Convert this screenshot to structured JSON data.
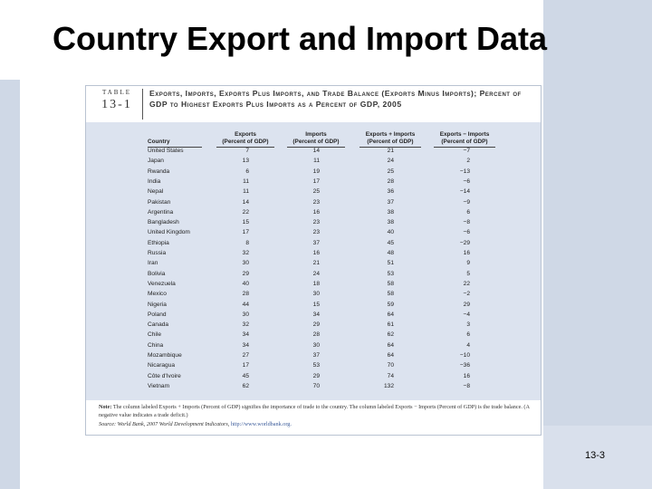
{
  "slide": {
    "title": "Country Export and Import Data",
    "page_number": "13-3"
  },
  "table": {
    "tag_word": "TABLE",
    "tag_number": "13-1",
    "caption": "Exports, Imports, Exports Plus Imports, and Trade Balance (Exports Minus Imports); Percent of GDP to Highest Exports Plus Imports as a Percent of GDP, 2005",
    "headers": {
      "country": "Country",
      "exports": "Exports\n(Percent of GDP)",
      "imports": "Imports\n(Percent of GDP)",
      "sum": "Exports + Imports\n(Percent of GDP)",
      "balance": "Exports − Imports\n(Percent of GDP)"
    },
    "rows": [
      [
        "United States",
        "7",
        "14",
        "21",
        "−7"
      ],
      [
        "Japan",
        "13",
        "11",
        "24",
        "2"
      ],
      [
        "Rwanda",
        "6",
        "19",
        "25",
        "−13"
      ],
      [
        "India",
        "11",
        "17",
        "28",
        "−6"
      ],
      [
        "Nepal",
        "11",
        "25",
        "36",
        "−14"
      ],
      [
        "Pakistan",
        "14",
        "23",
        "37",
        "−9"
      ],
      [
        "Argentina",
        "22",
        "16",
        "38",
        "6"
      ],
      [
        "Bangladesh",
        "15",
        "23",
        "38",
        "−8"
      ],
      [
        "United Kingdom",
        "17",
        "23",
        "40",
        "−6"
      ],
      [
        "Ethiopia",
        "8",
        "37",
        "45",
        "−29"
      ],
      [
        "Russia",
        "32",
        "16",
        "48",
        "16"
      ],
      [
        "Iran",
        "30",
        "21",
        "51",
        "9"
      ],
      [
        "Bolivia",
        "29",
        "24",
        "53",
        "5"
      ],
      [
        "Venezuela",
        "40",
        "18",
        "58",
        "22"
      ],
      [
        "Mexico",
        "28",
        "30",
        "58",
        "−2"
      ],
      [
        "Nigeria",
        "44",
        "15",
        "59",
        "29"
      ],
      [
        "Poland",
        "30",
        "34",
        "64",
        "−4"
      ],
      [
        "Canada",
        "32",
        "29",
        "61",
        "3"
      ],
      [
        "Chile",
        "34",
        "28",
        "62",
        "6"
      ],
      [
        "China",
        "34",
        "30",
        "64",
        "4"
      ],
      [
        "Mozambique",
        "27",
        "37",
        "64",
        "−10"
      ],
      [
        "Nicaragua",
        "17",
        "53",
        "70",
        "−36"
      ],
      [
        "Côte d'Ivoire",
        "45",
        "29",
        "74",
        "16"
      ],
      [
        "Vietnam",
        "62",
        "70",
        "132",
        "−8"
      ]
    ],
    "note_label": "Note:",
    "note_text": "The column labeled Exports + Imports (Percent of GDP) signifies the importance of trade to the country. The column labeled Exports − Imports (Percent of GDP) is the trade balance. (A negative value indicates a trade deficit.)",
    "source_label": "Source:",
    "source_text": "World Bank, 2007 World Development Indicators,",
    "source_link": "http://www.worldbank.org."
  }
}
